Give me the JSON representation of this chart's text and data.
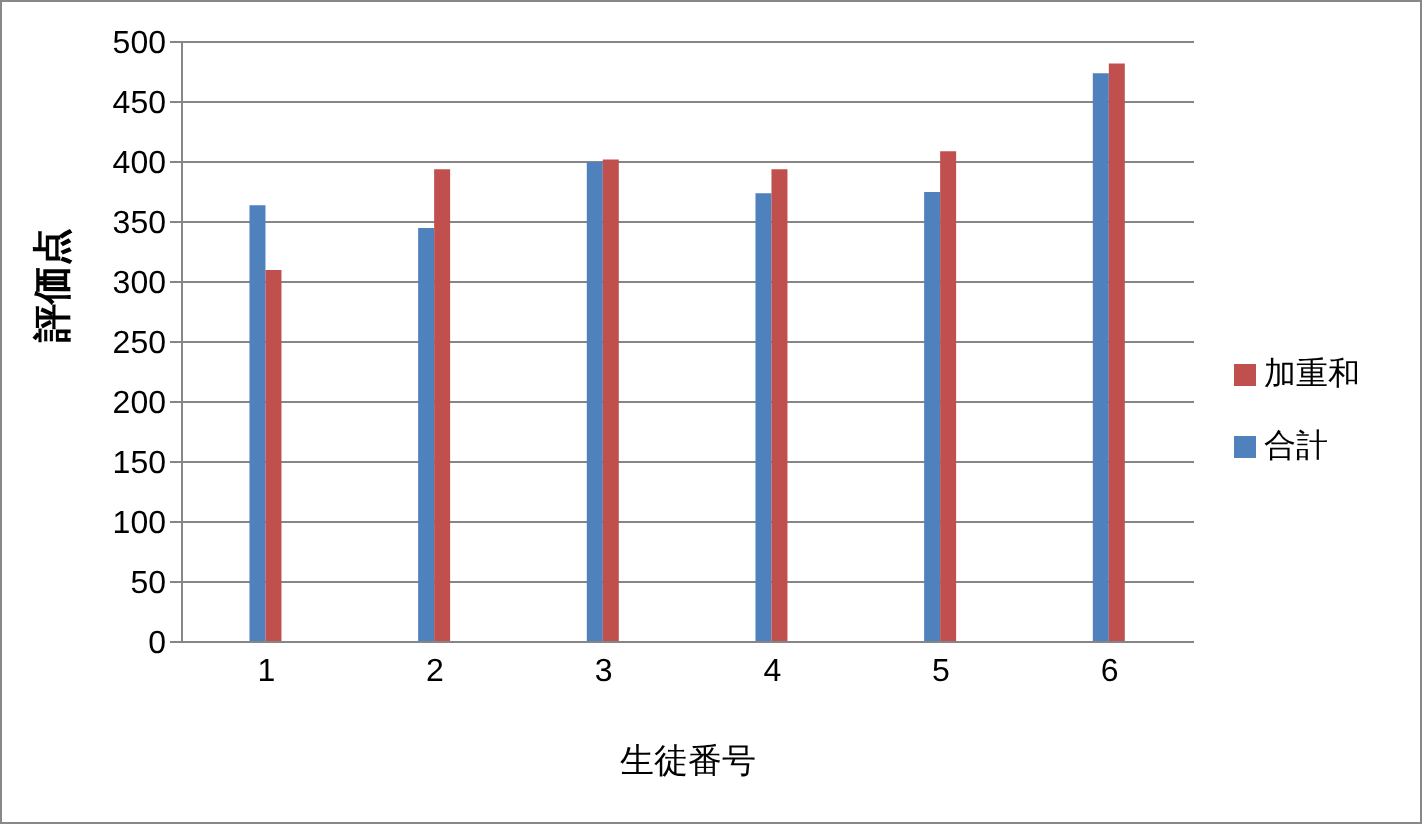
{
  "chart_data": {
    "type": "bar",
    "xlabel": "生徒番号",
    "ylabel": "評価点",
    "categories": [
      "1",
      "2",
      "3",
      "4",
      "5",
      "6"
    ],
    "series": [
      {
        "name": "合計",
        "color": "#4f81bd",
        "values": [
          364,
          345,
          400,
          374,
          375,
          474
        ]
      },
      {
        "name": "加重和",
        "color": "#c0504d",
        "values": [
          310,
          394,
          402,
          394,
          409,
          482
        ]
      }
    ],
    "ylim": [
      0,
      500
    ],
    "yticks": [
      0,
      50,
      100,
      150,
      200,
      250,
      300,
      350,
      400,
      450,
      500
    ],
    "grid": "y",
    "legend": "right"
  }
}
